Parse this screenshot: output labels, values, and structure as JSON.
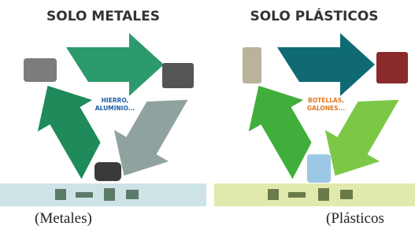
{
  "posters": [
    {
      "title": "SOLO METALES",
      "center_text": [
        "HIERRO,",
        "ALUMINIO..."
      ],
      "caption": "(Metales)"
    },
    {
      "title": "SOLO PLÁSTICOS",
      "center_text": [
        "BOTELLAS,",
        "GALONES..."
      ],
      "caption": "(Plásticos"
    }
  ]
}
